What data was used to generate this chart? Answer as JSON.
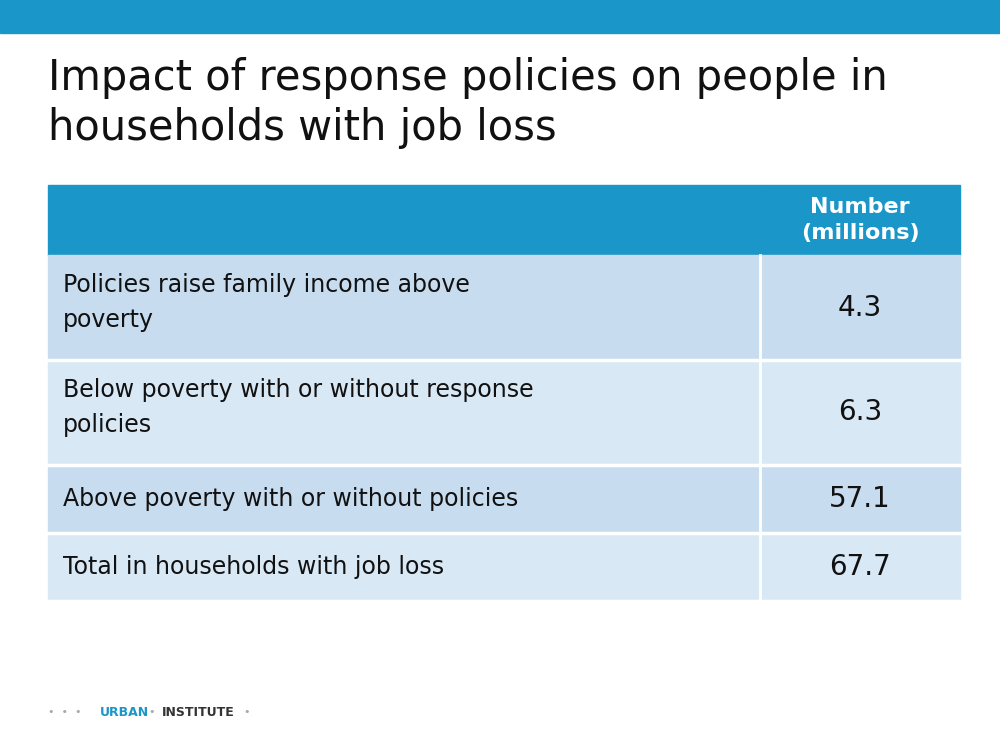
{
  "title_line1": "Impact of response policies on people in",
  "title_line2": "households with job loss",
  "header_col2": "Number\n(millions)",
  "rows": [
    {
      "label": "Policies raise family income above\npoverty",
      "value": "4.3",
      "two_line": true
    },
    {
      "label": "Below poverty with or without response\npolicies",
      "value": "6.3",
      "two_line": true
    },
    {
      "label": "Above poverty with or without policies",
      "value": "57.1",
      "two_line": false
    },
    {
      "label": "Total in households with job loss",
      "value": "67.7",
      "two_line": false
    }
  ],
  "header_bg": "#1B96C8",
  "header_text_color": "#FFFFFF",
  "row_bg_light": "#C8DCF0",
  "row_bg_lighter": "#D8E8F5",
  "row_text_color": "#111111",
  "top_bar_color": "#1B96C8",
  "background_color": "#FFFFFF",
  "title_color": "#111111",
  "title_fontsize": 30,
  "table_label_fontsize": 17,
  "table_value_fontsize": 20,
  "header_fontsize": 16
}
